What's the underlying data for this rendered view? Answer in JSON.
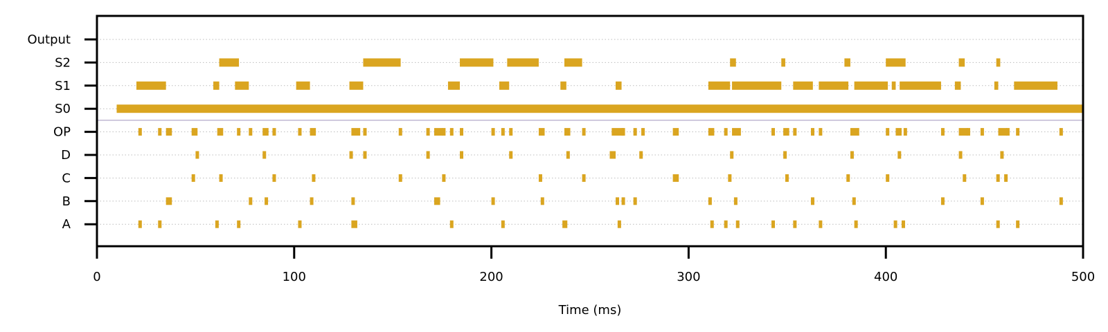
{
  "chart_data": {
    "type": "raster",
    "title": "",
    "xlabel": "Time (ms)",
    "ylabel": "",
    "xlim": [
      0,
      500
    ],
    "x_ticks": [
      0,
      100,
      200,
      300,
      400,
      500
    ],
    "grid": "dotted horizontal",
    "legend": "none",
    "colors": {
      "event": "#DAA520",
      "grid": "#bbbbbb",
      "separator": "#b3a8c8",
      "axis": "#000000"
    },
    "rows": [
      {
        "label": "A",
        "events": [
          [
            21,
            1.5
          ],
          [
            31,
            1.5
          ],
          [
            60,
            1.5
          ],
          [
            71,
            1.5
          ],
          [
            102,
            1.5
          ],
          [
            129,
            3
          ],
          [
            179,
            1.5
          ],
          [
            205,
            1.5
          ],
          [
            236,
            2.5
          ],
          [
            264,
            1.5
          ],
          [
            311,
            1.5
          ],
          [
            318,
            1.5
          ],
          [
            324,
            1.5
          ],
          [
            342,
            1.5
          ],
          [
            353,
            1.5
          ],
          [
            366,
            1.5
          ],
          [
            384,
            1.5
          ],
          [
            404,
            1.5
          ],
          [
            408,
            1.5
          ],
          [
            456,
            1.5
          ],
          [
            466,
            1.5
          ]
        ]
      },
      {
        "label": "B",
        "events": [
          [
            35,
            3
          ],
          [
            77,
            1.5
          ],
          [
            85,
            1.5
          ],
          [
            108,
            1.5
          ],
          [
            129,
            1.5
          ],
          [
            171,
            3
          ],
          [
            200,
            1.5
          ],
          [
            225,
            1.5
          ],
          [
            263,
            1.5
          ],
          [
            266,
            1.5
          ],
          [
            272,
            1.5
          ],
          [
            310,
            1.5
          ],
          [
            323,
            1.5
          ],
          [
            362,
            1.5
          ],
          [
            383,
            1.5
          ],
          [
            428,
            1.5
          ],
          [
            448,
            1.5
          ],
          [
            488,
            1.5
          ]
        ]
      },
      {
        "label": "C",
        "events": [
          [
            48,
            1.5
          ],
          [
            62,
            1.5
          ],
          [
            89,
            1.5
          ],
          [
            109,
            1.5
          ],
          [
            153,
            1.5
          ],
          [
            175,
            1.5
          ],
          [
            224,
            1.5
          ],
          [
            246,
            1.5
          ],
          [
            292,
            3
          ],
          [
            320,
            1.5
          ],
          [
            349,
            1.5
          ],
          [
            380,
            1.5
          ],
          [
            400,
            1.5
          ],
          [
            439,
            1.5
          ],
          [
            456,
            1.5
          ],
          [
            460,
            1.5
          ]
        ]
      },
      {
        "label": "D",
        "events": [
          [
            50,
            1.5
          ],
          [
            84,
            1.5
          ],
          [
            128,
            1.5
          ],
          [
            135,
            1.5
          ],
          [
            167,
            1.5
          ],
          [
            184,
            1.5
          ],
          [
            209,
            1.5
          ],
          [
            238,
            1.5
          ],
          [
            260,
            3
          ],
          [
            275,
            1.5
          ],
          [
            321,
            1.5
          ],
          [
            348,
            1.5
          ],
          [
            382,
            1.5
          ],
          [
            406,
            1.5
          ],
          [
            437,
            1.5
          ],
          [
            458,
            1.5
          ]
        ]
      },
      {
        "label": "OP",
        "events": [
          [
            21,
            1.5
          ],
          [
            31,
            1.5
          ],
          [
            35,
            3
          ],
          [
            48,
            3
          ],
          [
            61,
            3
          ],
          [
            71,
            1.5
          ],
          [
            77,
            1.5
          ],
          [
            84,
            3
          ],
          [
            89,
            1.5
          ],
          [
            102,
            1.5
          ],
          [
            108,
            3
          ],
          [
            129,
            4.5
          ],
          [
            135,
            1.5
          ],
          [
            153,
            1.5
          ],
          [
            167,
            1.5
          ],
          [
            171,
            4.5
          ],
          [
            175,
            1.5
          ],
          [
            179,
            1.5
          ],
          [
            184,
            1.5
          ],
          [
            200,
            1.5
          ],
          [
            205,
            1.5
          ],
          [
            209,
            1.5
          ],
          [
            224,
            3
          ],
          [
            237,
            3
          ],
          [
            246,
            1.5
          ],
          [
            261,
            6
          ],
          [
            266,
            1.5
          ],
          [
            272,
            1.5
          ],
          [
            276,
            1.5
          ],
          [
            292,
            3
          ],
          [
            310,
            3
          ],
          [
            318,
            1.5
          ],
          [
            322,
            4.5
          ],
          [
            342,
            1.5
          ],
          [
            348,
            3
          ],
          [
            353,
            1.5
          ],
          [
            362,
            1.5
          ],
          [
            366,
            1.5
          ],
          [
            382,
            4.5
          ],
          [
            400,
            1.5
          ],
          [
            405,
            3
          ],
          [
            409,
            1.5
          ],
          [
            428,
            1.5
          ],
          [
            437,
            4.5
          ],
          [
            441,
            1.5
          ],
          [
            448,
            1.5
          ],
          [
            457,
            4.5
          ],
          [
            461,
            1.5
          ],
          [
            466,
            1.5
          ],
          [
            488,
            1.5
          ]
        ]
      },
      {
        "label": "S0",
        "events": [
          [
            10,
            490
          ]
        ]
      },
      {
        "label": "S1",
        "events": [
          [
            20,
            15
          ],
          [
            59,
            3
          ],
          [
            70,
            7
          ],
          [
            101,
            7
          ],
          [
            128,
            7
          ],
          [
            178,
            6
          ],
          [
            204,
            5
          ],
          [
            235,
            3
          ],
          [
            263,
            3
          ],
          [
            310,
            11
          ],
          [
            322,
            25
          ],
          [
            353,
            10
          ],
          [
            366,
            15
          ],
          [
            384,
            17
          ],
          [
            403,
            2
          ],
          [
            407,
            21
          ],
          [
            435,
            3
          ],
          [
            455,
            2
          ],
          [
            465,
            22
          ]
        ]
      },
      {
        "label": "S2",
        "events": [
          [
            62,
            10
          ],
          [
            135,
            19
          ],
          [
            184,
            17
          ],
          [
            208,
            16
          ],
          [
            237,
            9
          ],
          [
            321,
            3
          ],
          [
            347,
            2
          ],
          [
            379,
            3
          ],
          [
            400,
            10
          ],
          [
            437,
            3
          ],
          [
            456,
            2
          ]
        ]
      },
      {
        "label": "Output",
        "events": []
      }
    ],
    "separator_between": [
      "OP",
      "S0"
    ]
  }
}
